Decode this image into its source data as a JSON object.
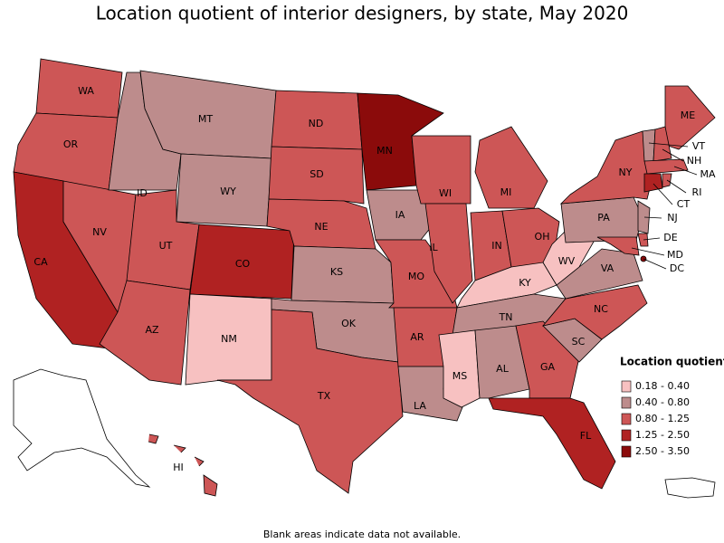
{
  "title": "Location quotient of interior designers, by state, May 2020",
  "note": "Blank areas indicate data not available.",
  "legend": {
    "title": "Location quotient",
    "items": [
      {
        "label": "0.18 - 0.40",
        "color": "#f7c1c1"
      },
      {
        "label": "0.40 - 0.80",
        "color": "#bd8c8c"
      },
      {
        "label": "0.80 - 1.25",
        "color": "#cd5656"
      },
      {
        "label": "1.25 - 2.50",
        "color": "#b02222"
      },
      {
        "label": "2.50 - 3.50",
        "color": "#8b0b0b"
      }
    ]
  },
  "states": [
    {
      "label": "WA",
      "class": 2
    },
    {
      "label": "OR",
      "class": 2
    },
    {
      "label": "CA",
      "class": 3
    },
    {
      "label": "NV",
      "class": 2
    },
    {
      "label": "ID",
      "class": 1
    },
    {
      "label": "MT",
      "class": 1
    },
    {
      "label": "WY",
      "class": 1
    },
    {
      "label": "UT",
      "class": 2
    },
    {
      "label": "CO",
      "class": 3
    },
    {
      "label": "AZ",
      "class": 2
    },
    {
      "label": "NM",
      "class": 0
    },
    {
      "label": "ND",
      "class": 2
    },
    {
      "label": "SD",
      "class": 2
    },
    {
      "label": "NE",
      "class": 2
    },
    {
      "label": "KS",
      "class": 1
    },
    {
      "label": "OK",
      "class": 1
    },
    {
      "label": "TX",
      "class": 2
    },
    {
      "label": "MN",
      "class": 4
    },
    {
      "label": "IA",
      "class": 1
    },
    {
      "label": "MO",
      "class": 2
    },
    {
      "label": "AR",
      "class": 2
    },
    {
      "label": "LA",
      "class": 1
    },
    {
      "label": "WI",
      "class": 2
    },
    {
      "label": "IL",
      "class": 2
    },
    {
      "label": "MI",
      "class": 2
    },
    {
      "label": "IN",
      "class": 2
    },
    {
      "label": "OH",
      "class": 2
    },
    {
      "label": "KY",
      "class": 0
    },
    {
      "label": "TN",
      "class": 1
    },
    {
      "label": "MS",
      "class": 0
    },
    {
      "label": "AL",
      "class": 1
    },
    {
      "label": "GA",
      "class": 2
    },
    {
      "label": "FL",
      "class": 3
    },
    {
      "label": "SC",
      "class": 1
    },
    {
      "label": "NC",
      "class": 2
    },
    {
      "label": "VA",
      "class": 1
    },
    {
      "label": "WV",
      "class": 0
    },
    {
      "label": "PA",
      "class": 1
    },
    {
      "label": "NY",
      "class": 2
    },
    {
      "label": "ME",
      "class": 2
    },
    {
      "label": "VT",
      "class": 1
    },
    {
      "label": "NH",
      "class": 2
    },
    {
      "label": "MA",
      "class": 2
    },
    {
      "label": "CT",
      "class": 3
    },
    {
      "label": "RI",
      "class": 2
    },
    {
      "label": "NJ",
      "class": 1
    },
    {
      "label": "DE",
      "class": 2
    },
    {
      "label": "MD",
      "class": 2
    },
    {
      "label": "DC",
      "class": 4
    },
    {
      "label": "HI",
      "class": 2
    }
  ]
}
